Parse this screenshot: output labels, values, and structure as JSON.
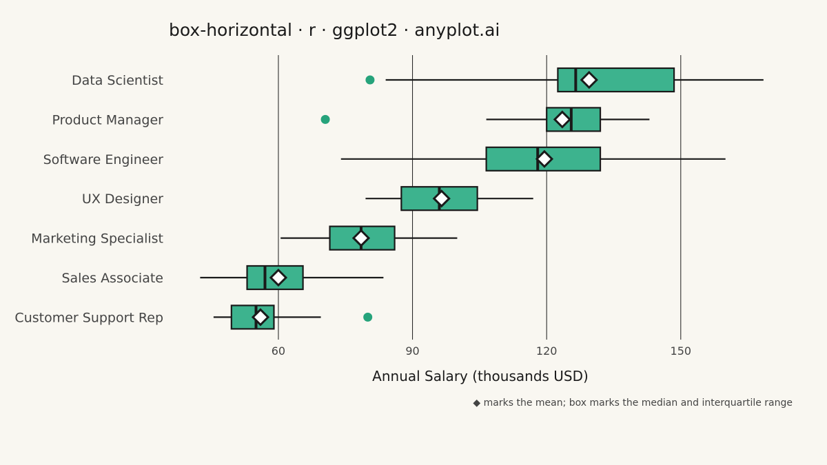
{
  "chart_data": {
    "type": "box-horizontal",
    "title": "box-horizontal · r · ggplot2 · anyplot.ai",
    "xlabel": "Annual Salary (thousands USD)",
    "caption": "◆ marks the mean; box marks the median and interquartile range",
    "xlim": [
      35.5,
      175
    ],
    "xticks": [
      60,
      90,
      120,
      150
    ],
    "categories": [
      "Data Scientist",
      "Product Manager",
      "Software Engineer",
      "UX Designer",
      "Marketing Specialist",
      "Sales Associate",
      "Customer Support Rep"
    ],
    "boxes": [
      {
        "whisker_low": 84,
        "q1": 122.5,
        "median": 126.5,
        "q3": 148.5,
        "whisker_high": 168.5,
        "mean": 129.5,
        "outliers": [
          80.5
        ]
      },
      {
        "whisker_low": 106.5,
        "q1": 120,
        "median": 125.5,
        "q3": 132,
        "whisker_high": 143,
        "mean": 123.5,
        "outliers": [
          70.5
        ]
      },
      {
        "whisker_low": 74,
        "q1": 106.5,
        "median": 118,
        "q3": 132,
        "whisker_high": 160,
        "mean": 119.5,
        "outliers": []
      },
      {
        "whisker_low": 79.5,
        "q1": 87.5,
        "median": 96,
        "q3": 104.5,
        "whisker_high": 117,
        "mean": 96.5,
        "outliers": []
      },
      {
        "whisker_low": 60.5,
        "q1": 71.5,
        "median": 78.5,
        "q3": 86,
        "whisker_high": 100,
        "mean": 78.5,
        "outliers": []
      },
      {
        "whisker_low": 42.5,
        "q1": 53,
        "median": 57,
        "q3": 65.5,
        "whisker_high": 83.5,
        "mean": 60,
        "outliers": []
      },
      {
        "whisker_low": 45.5,
        "q1": 49.5,
        "median": 55,
        "q3": 59,
        "whisker_high": 69.5,
        "mean": 56,
        "outliers": [
          80
        ]
      }
    ],
    "grid": "vertical-major",
    "colors": {
      "box_fill": "#3db38e",
      "outline": "#1a1a1a",
      "outlier": "#1a9e74",
      "mean_marker_fill": "#ffffff",
      "background": "#f9f7f1"
    }
  }
}
